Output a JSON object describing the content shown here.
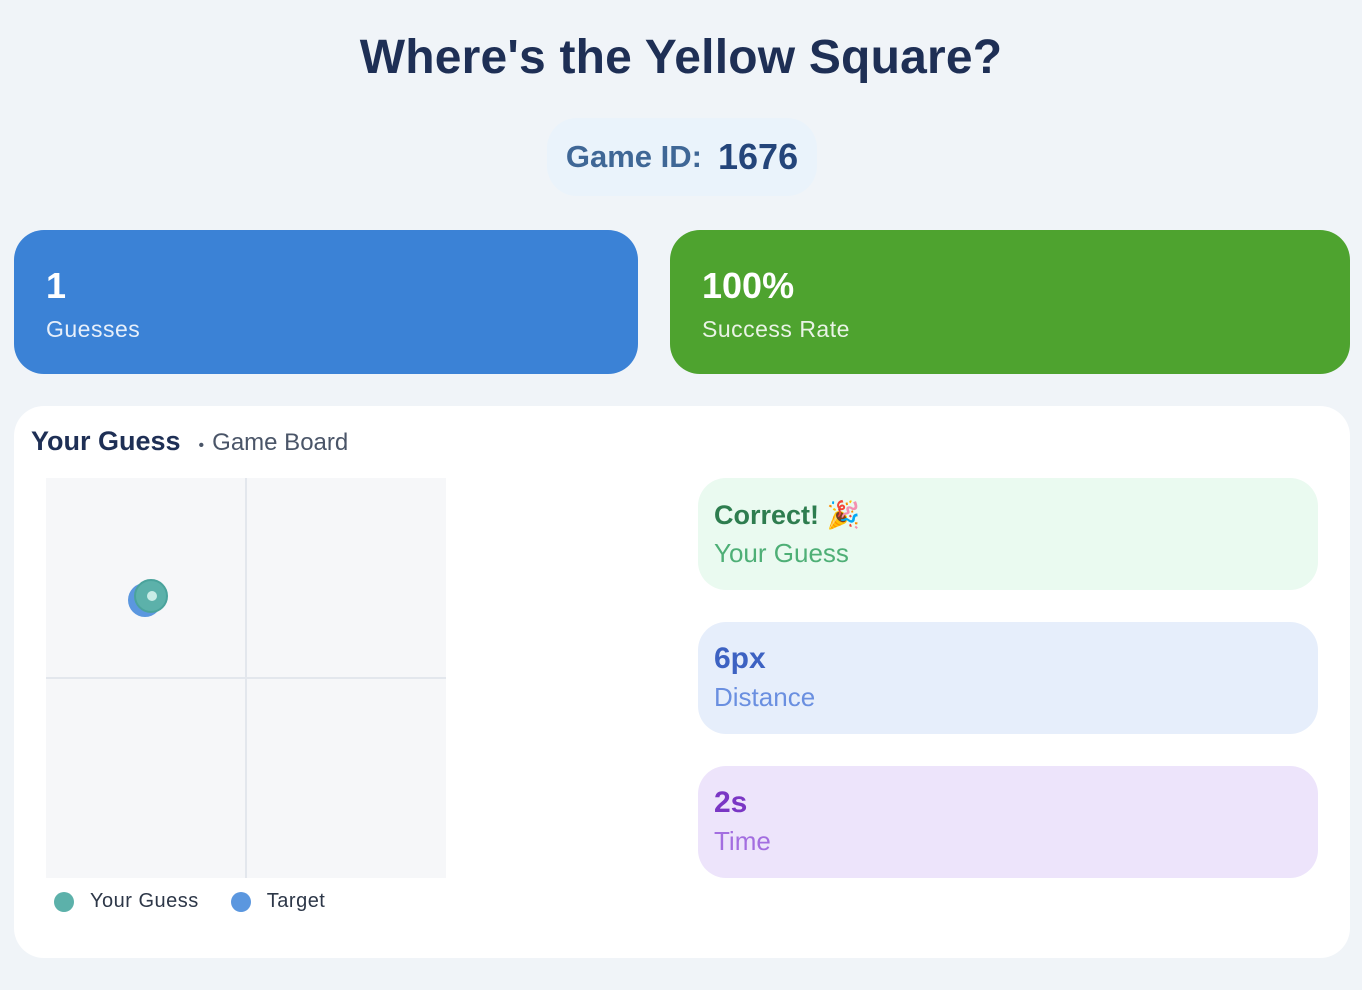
{
  "header": {
    "title": "Where's the Yellow Square?",
    "game_id_label": "Game ID:",
    "game_id_value": "1676"
  },
  "stats": {
    "guesses_value": "1",
    "guesses_label": "Guesses",
    "success_value": "100%",
    "success_label": "Success Rate"
  },
  "board_panel": {
    "heading": "Your Guess",
    "separator": "•",
    "subheading": "Game Board",
    "legend": {
      "guess_label": "Your Guess",
      "guess_color": "#5cb1aa",
      "target_label": "Target",
      "target_color": "#5b97df"
    }
  },
  "results": {
    "correct_title": "Correct! 🎉",
    "correct_caption": "Your Guess",
    "distance_value": "6px",
    "distance_caption": "Distance",
    "time_value": "2s",
    "time_caption": "Time"
  },
  "colors": {
    "guesses_card": "#3b82d6",
    "success_card": "#4ea32f",
    "correct_card": "#eafaf0",
    "distance_card": "#e6eefb",
    "time_card": "#ede4fb"
  }
}
